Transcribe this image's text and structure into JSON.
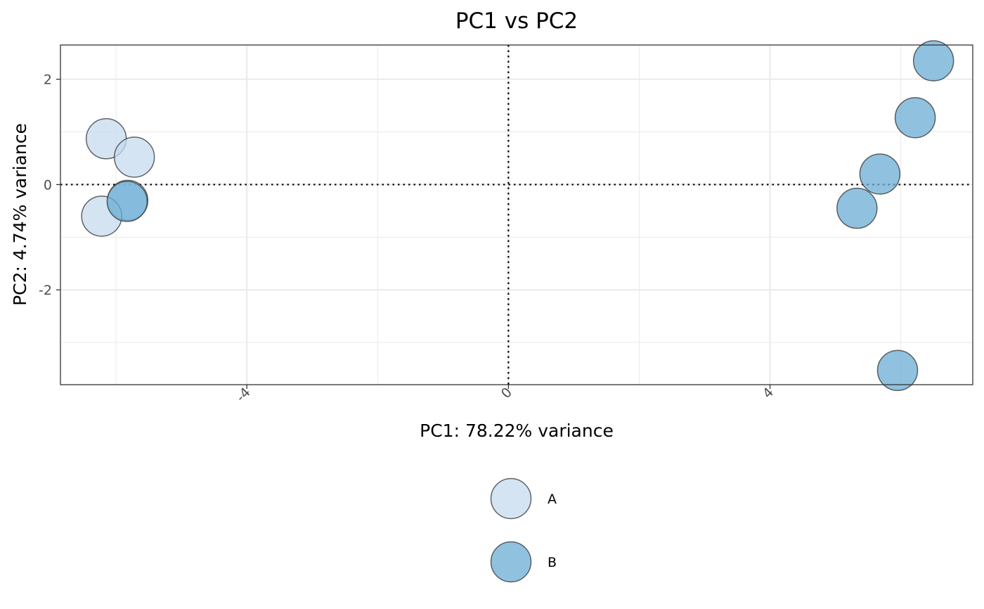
{
  "chart_data": {
    "type": "scatter",
    "title": "PC1 vs PC2",
    "xlabel": "PC1: 78.22% variance",
    "ylabel": "PC2: 4.74% variance",
    "xlim": [
      -6.85,
      7.1
    ],
    "ylim": [
      -3.8,
      2.65
    ],
    "x_ticks": [
      -4,
      0,
      4
    ],
    "y_ticks": [
      2,
      0,
      -2
    ],
    "x_tick_labels": [
      "-4",
      "0",
      "4"
    ],
    "y_tick_labels": [
      "2",
      "0",
      "-2"
    ],
    "grid": true,
    "reference_lines": {
      "x": 0,
      "y": 0,
      "style": "dotted"
    },
    "legend": {
      "position": "bottom"
    },
    "series": [
      {
        "name": "A",
        "color": "#c6dbef",
        "points": [
          {
            "x": -6.15,
            "y": 0.87
          },
          {
            "x": -5.72,
            "y": 0.52
          },
          {
            "x": -5.82,
            "y": -0.3
          },
          {
            "x": -6.22,
            "y": -0.6
          }
        ]
      },
      {
        "name": "B",
        "color": "#6baed6",
        "points": [
          {
            "x": -5.83,
            "y": -0.32
          },
          {
            "x": 6.5,
            "y": 2.35
          },
          {
            "x": 6.22,
            "y": 1.27
          },
          {
            "x": 5.68,
            "y": 0.2
          },
          {
            "x": 5.33,
            "y": -0.45
          },
          {
            "x": 5.95,
            "y": -3.53
          }
        ]
      }
    ]
  }
}
